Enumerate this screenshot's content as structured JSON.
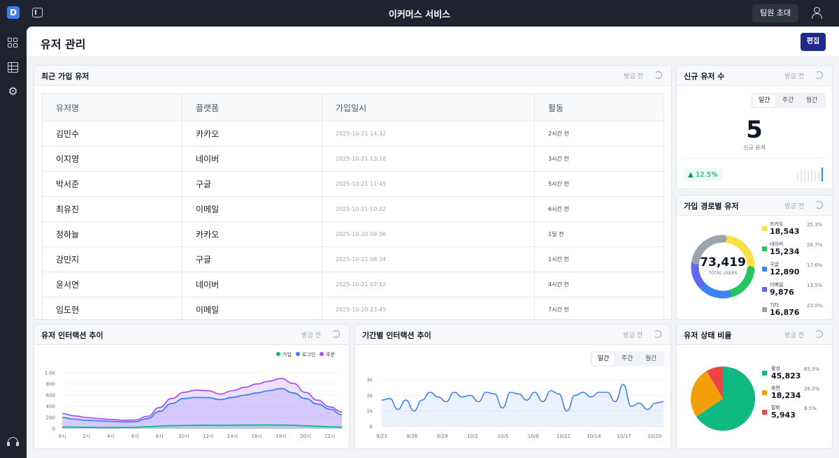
{
  "app": {
    "logo_letter": "D",
    "title": "이커머스 서비스",
    "invite_label": "팀원 초대"
  },
  "page": {
    "title": "유저 관리",
    "edit_label": "편집"
  },
  "recent_users": {
    "title": "최근 가입 유저",
    "meta": "방금 전",
    "columns": [
      "유저명",
      "플랫폼",
      "가입일시",
      "활동"
    ],
    "rows": [
      {
        "name": "김민수",
        "platform": "카카오",
        "joined": "2025-10-21 14:32",
        "activity": "2시간 전"
      },
      {
        "name": "이지영",
        "platform": "네이버",
        "joined": "2025-10-21 13:18",
        "activity": "3시간 전"
      },
      {
        "name": "박서준",
        "platform": "구글",
        "joined": "2025-10-21 11:45",
        "activity": "5시간 전"
      },
      {
        "name": "최유진",
        "platform": "이메일",
        "joined": "2025-10-21 10:22",
        "activity": "6시간 전"
      },
      {
        "name": "정하늘",
        "platform": "카카오",
        "joined": "2025-10-20 09:56",
        "activity": "1일 전"
      },
      {
        "name": "강민지",
        "platform": "구글",
        "joined": "2025-10-21 08:34",
        "activity": "1시간 전"
      },
      {
        "name": "윤서연",
        "platform": "네이버",
        "joined": "2025-10-21 07:12",
        "activity": "4시간 전"
      },
      {
        "name": "임도현",
        "platform": "이메일",
        "joined": "2025-10-20 23:45",
        "activity": "7시간 전"
      }
    ]
  },
  "new_users": {
    "title": "신규 유저 수",
    "meta": "방금 전",
    "periods": [
      "일간",
      "주간",
      "월간"
    ],
    "active_period": "일간",
    "value": "5",
    "value_label": "신규 유저",
    "trend": "▲ 12.5%",
    "spark": [
      0.6,
      0.75,
      0.8,
      0.75,
      0.85,
      0.7,
      0.8,
      1.0
    ]
  },
  "signup_channels": {
    "title": "가입 경로별 유저",
    "meta": "방금 전",
    "total": "73,419",
    "total_label": "TOTAL USERS",
    "items": [
      {
        "name": "카카오",
        "value": "18,543",
        "pct": "25.3%",
        "color": "#fde047"
      },
      {
        "name": "네이버",
        "value": "15,234",
        "pct": "20.7%",
        "color": "#22c55e"
      },
      {
        "name": "구글",
        "value": "12,890",
        "pct": "17.6%",
        "color": "#3b82f6"
      },
      {
        "name": "이메일",
        "value": "9,876",
        "pct": "13.5%",
        "color": "#6366f1"
      },
      {
        "name": "기타",
        "value": "16,876",
        "pct": "23.0%",
        "color": "#9ca3af"
      }
    ]
  },
  "interaction_trend": {
    "title": "유저 인터랙션 추이",
    "meta": "방금 전",
    "chart_data": {
      "type": "area",
      "x": [
        "0시",
        "1시",
        "2시",
        "3시",
        "4시",
        "5시",
        "6시",
        "7시",
        "8시",
        "9시",
        "10시",
        "11시",
        "12시",
        "13시",
        "14시",
        "15시",
        "16시",
        "17시",
        "18시",
        "19시",
        "20시",
        "21시",
        "22시",
        "23시"
      ],
      "x_ticks": [
        "0시",
        "2시",
        "4시",
        "6시",
        "8시",
        "10시",
        "12시",
        "14시",
        "16시",
        "18시",
        "20시",
        "22시"
      ],
      "y_ticks": [
        "0",
        "200",
        "400",
        "600",
        "800",
        "1.0k"
      ],
      "ylim": [
        0,
        1000
      ],
      "series": [
        {
          "name": "가입",
          "color": "#10b981",
          "values": [
            30,
            28,
            25,
            22,
            20,
            22,
            25,
            35,
            45,
            55,
            58,
            60,
            62,
            60,
            62,
            64,
            66,
            66,
            65,
            60,
            52,
            42,
            35,
            28
          ]
        },
        {
          "name": "로그인",
          "color": "#3b82f6",
          "values": [
            200,
            170,
            150,
            140,
            130,
            120,
            125,
            180,
            310,
            450,
            540,
            560,
            555,
            520,
            560,
            600,
            640,
            680,
            720,
            640,
            540,
            440,
            350,
            250
          ]
        },
        {
          "name": "주문",
          "color": "#a855f7",
          "values": [
            270,
            230,
            200,
            180,
            165,
            150,
            155,
            220,
            380,
            540,
            650,
            690,
            680,
            620,
            680,
            740,
            800,
            850,
            900,
            810,
            650,
            510,
            390,
            300
          ]
        }
      ]
    }
  },
  "period_trend": {
    "title": "기간별 인터랙션 추이",
    "meta": "방금 전",
    "periods": [
      "일간",
      "주간",
      "월간"
    ],
    "active_period": "일간",
    "chart_data": {
      "type": "area",
      "x_ticks": [
        "9/23",
        "9/26",
        "9/29",
        "10/2",
        "10/5",
        "10/8",
        "10/11",
        "10/14",
        "10/17",
        "10/20"
      ],
      "y_ticks": [
        "0",
        "1k",
        "2k",
        "3k"
      ],
      "ylim": [
        0,
        3000
      ],
      "series": [
        {
          "name": "",
          "color": "#3b82f6",
          "values": [
            1700,
            1800,
            1100,
            1700,
            1000,
            1700,
            2200,
            1900,
            1600,
            2200,
            1900,
            2000,
            1600,
            2200,
            2100,
            1200,
            2200,
            2100,
            1700,
            2200,
            1600,
            2300,
            2100,
            1000,
            2000,
            2200,
            1900,
            2200,
            2200,
            1600,
            2700,
            1300,
            1500,
            1100,
            1500,
            1600
          ]
        }
      ]
    }
  },
  "user_status": {
    "title": "유저 상태 비율",
    "meta": "방금 전",
    "items": [
      {
        "name": "활성",
        "value": "45,823",
        "pct": "65.5%",
        "color": "#10b981"
      },
      {
        "name": "휴면",
        "value": "18,234",
        "pct": "26.0%",
        "color": "#f59e0b"
      },
      {
        "name": "탈퇴",
        "value": "5,943",
        "pct": "8.5%",
        "color": "#ef4444"
      }
    ]
  }
}
